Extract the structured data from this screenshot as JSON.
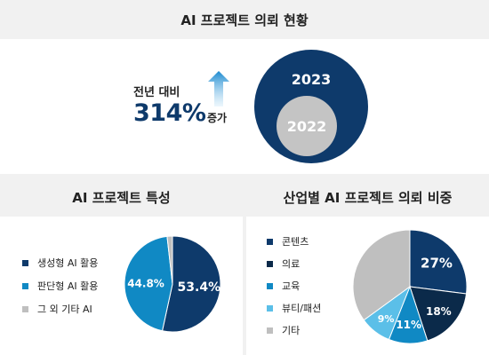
{
  "top": {
    "title": "AI 프로젝트 의뢰 현황",
    "growth_label": "전년 대비",
    "growth_value": "314%",
    "growth_unit": "증가",
    "years": {
      "current": "2023",
      "previous": "2022"
    }
  },
  "left": {
    "title": "AI 프로젝트 특성"
  },
  "right": {
    "title": "산업별 AI 프로젝트 의뢰 비중"
  },
  "colors": {
    "navy": "#0e3a6b",
    "dark_navy": "#0b2a4a",
    "blue": "#1089c4",
    "light_blue": "#5bbfe8",
    "gray": "#bfbfbf",
    "header_bg": "#f1f1f1"
  },
  "chart_data": [
    {
      "type": "pie",
      "title": "AI 프로젝트 특성",
      "slices": [
        {
          "label": "생성형 AI 활용",
          "value": 53.4,
          "display": "53.4%",
          "color": "#0e3a6b"
        },
        {
          "label": "판단형 AI 활용",
          "value": 44.8,
          "display": "44.8%",
          "color": "#1089c4"
        },
        {
          "label": "그 외 기타 AI",
          "value": 1.8,
          "display": "",
          "color": "#bfbfbf"
        }
      ],
      "legend_position": "left"
    },
    {
      "type": "pie",
      "title": "산업별 AI 프로젝트 의뢰 비중",
      "slices": [
        {
          "label": "콘텐츠",
          "value": 27,
          "display": "27%",
          "color": "#0e3a6b"
        },
        {
          "label": "의료",
          "value": 18,
          "display": "18%",
          "color": "#0b2a4a"
        },
        {
          "label": "교육",
          "value": 11,
          "display": "11%",
          "color": "#1089c4"
        },
        {
          "label": "뷰티/패션",
          "value": 9,
          "display": "9%",
          "color": "#5bbfe8"
        },
        {
          "label": "기타",
          "value": 35,
          "display": "",
          "color": "#bfbfbf"
        }
      ],
      "legend_position": "left"
    }
  ]
}
